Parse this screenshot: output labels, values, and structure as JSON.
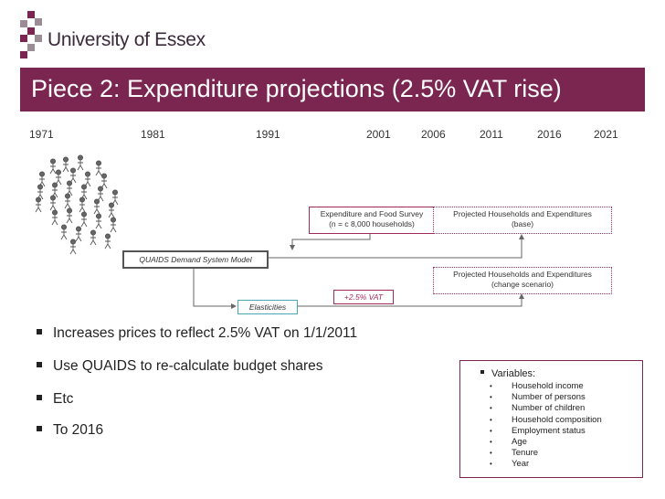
{
  "brand": {
    "name": "University of Essex",
    "colors": {
      "magenta": "#7b2650",
      "gray": "#9a8d96"
    }
  },
  "slide": {
    "title": "Piece 2: Expenditure projections (2.5% VAT rise)"
  },
  "timeline": {
    "years": [
      "1971",
      "1981",
      "1991",
      "2001",
      "2006",
      "2011",
      "2016",
      "2021"
    ]
  },
  "diagram": {
    "icon": "population-icon",
    "nodes": {
      "survey_line1": "Expenditure and Food Survey",
      "survey_line2": "(n = c 8,000 households)",
      "base_line1": "Projected Households and Expenditures",
      "base_line2": "(base)",
      "quaids": "QUAIDS Demand System Model",
      "change_line1": "Projected Households and  Expenditures",
      "change_line2": "(change scenario)",
      "vat": "+2.5% VAT",
      "elasticities": "Elasticities"
    }
  },
  "bullets": [
    "Increases prices to reflect 2.5% VAT on 1/1/2011",
    "Use QUAIDS to re-calculate budget shares",
    "Etc",
    "To 2016"
  ],
  "variables": {
    "title": "Variables:",
    "items": [
      "Household income",
      "Number of persons",
      "Number of children",
      "Household composition",
      "Employment status",
      "Age",
      "Tenure",
      "Year"
    ]
  }
}
